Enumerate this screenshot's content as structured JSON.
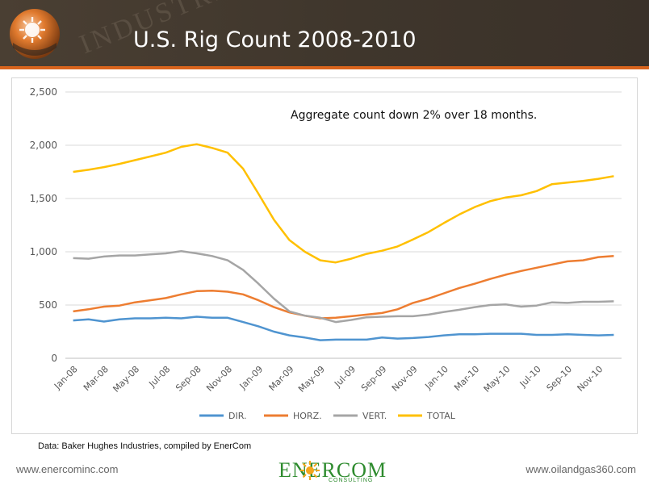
{
  "header": {
    "title": "U.S. Rig Count 2008-2010",
    "watermark": "INDUSTRIES",
    "colors": {
      "bar": "#433a30",
      "rule": "#d9641d",
      "title": "#ffffff"
    }
  },
  "footer": {
    "source": "Data: Baker Hughes Industries, compiled by EnerCom",
    "left_url": "www.enercominc.com",
    "right_url": "www.oilandgas360.com",
    "logo_text": "ENERCOM",
    "logo_sub": "CONSULTING",
    "logo_color": "#2e8b2e"
  },
  "chart_data": {
    "type": "line",
    "title": "",
    "annotation": "Aggregate count down 2% over 18 months.",
    "xlabel": "",
    "ylabel": "",
    "ylim": [
      0,
      2500
    ],
    "yticks": [
      0,
      500,
      1000,
      1500,
      2000,
      2500
    ],
    "ytick_labels": [
      "0",
      "500",
      "1,000",
      "1,500",
      "2,000",
      "2,500"
    ],
    "xtick_labels": [
      "Jan-08",
      "Mar-08",
      "May-08",
      "Jul-08",
      "Sep-08",
      "Nov-08",
      "Jan-09",
      "Mar-09",
      "May-09",
      "Jul-09",
      "Sep-09",
      "Nov-09",
      "Jan-10",
      "Mar-10",
      "May-10",
      "Jul-10",
      "Sep-10",
      "Nov-10"
    ],
    "grid": "horizontal",
    "legend_position": "bottom",
    "x": [
      "Jan-08",
      "Feb-08",
      "Mar-08",
      "Apr-08",
      "May-08",
      "Jun-08",
      "Jul-08",
      "Aug-08",
      "Sep-08",
      "Oct-08",
      "Nov-08",
      "Dec-08",
      "Jan-09",
      "Feb-09",
      "Mar-09",
      "Apr-09",
      "May-09",
      "Jun-09",
      "Jul-09",
      "Aug-09",
      "Sep-09",
      "Oct-09",
      "Nov-09",
      "Dec-09",
      "Jan-10",
      "Feb-10",
      "Mar-10",
      "Apr-10",
      "May-10",
      "Jun-10",
      "Jul-10",
      "Aug-10",
      "Sep-10",
      "Oct-10",
      "Nov-10",
      "Dec-10"
    ],
    "series": [
      {
        "name": "DIR.",
        "color": "#4f94d0",
        "values": [
          355,
          365,
          345,
          365,
          375,
          375,
          380,
          375,
          390,
          380,
          380,
          340,
          300,
          250,
          215,
          195,
          170,
          175,
          175,
          175,
          195,
          185,
          190,
          200,
          215,
          225,
          225,
          230,
          230,
          230,
          220,
          220,
          225,
          220,
          215,
          220
        ]
      },
      {
        "name": "HORZ.",
        "color": "#ed7d31",
        "values": [
          440,
          460,
          485,
          495,
          525,
          545,
          565,
          600,
          630,
          635,
          625,
          600,
          545,
          480,
          430,
          400,
          375,
          380,
          395,
          410,
          425,
          460,
          520,
          560,
          610,
          660,
          700,
          745,
          785,
          820,
          850,
          880,
          910,
          920,
          950,
          960
        ]
      },
      {
        "name": "VERT.",
        "color": "#a5a5a5",
        "values": [
          940,
          935,
          955,
          965,
          965,
          975,
          985,
          1005,
          985,
          960,
          920,
          830,
          700,
          560,
          440,
          400,
          380,
          340,
          360,
          385,
          390,
          395,
          395,
          410,
          435,
          455,
          480,
          500,
          505,
          485,
          495,
          525,
          520,
          530,
          530,
          535
        ]
      },
      {
        "name": "TOTAL",
        "color": "#ffc000",
        "values": [
          1750,
          1770,
          1795,
          1825,
          1860,
          1895,
          1930,
          1985,
          2010,
          1975,
          1930,
          1780,
          1545,
          1300,
          1110,
          1000,
          920,
          900,
          935,
          980,
          1010,
          1050,
          1115,
          1185,
          1270,
          1350,
          1420,
          1475,
          1510,
          1530,
          1570,
          1635,
          1650,
          1665,
          1685,
          1710
        ]
      }
    ]
  }
}
